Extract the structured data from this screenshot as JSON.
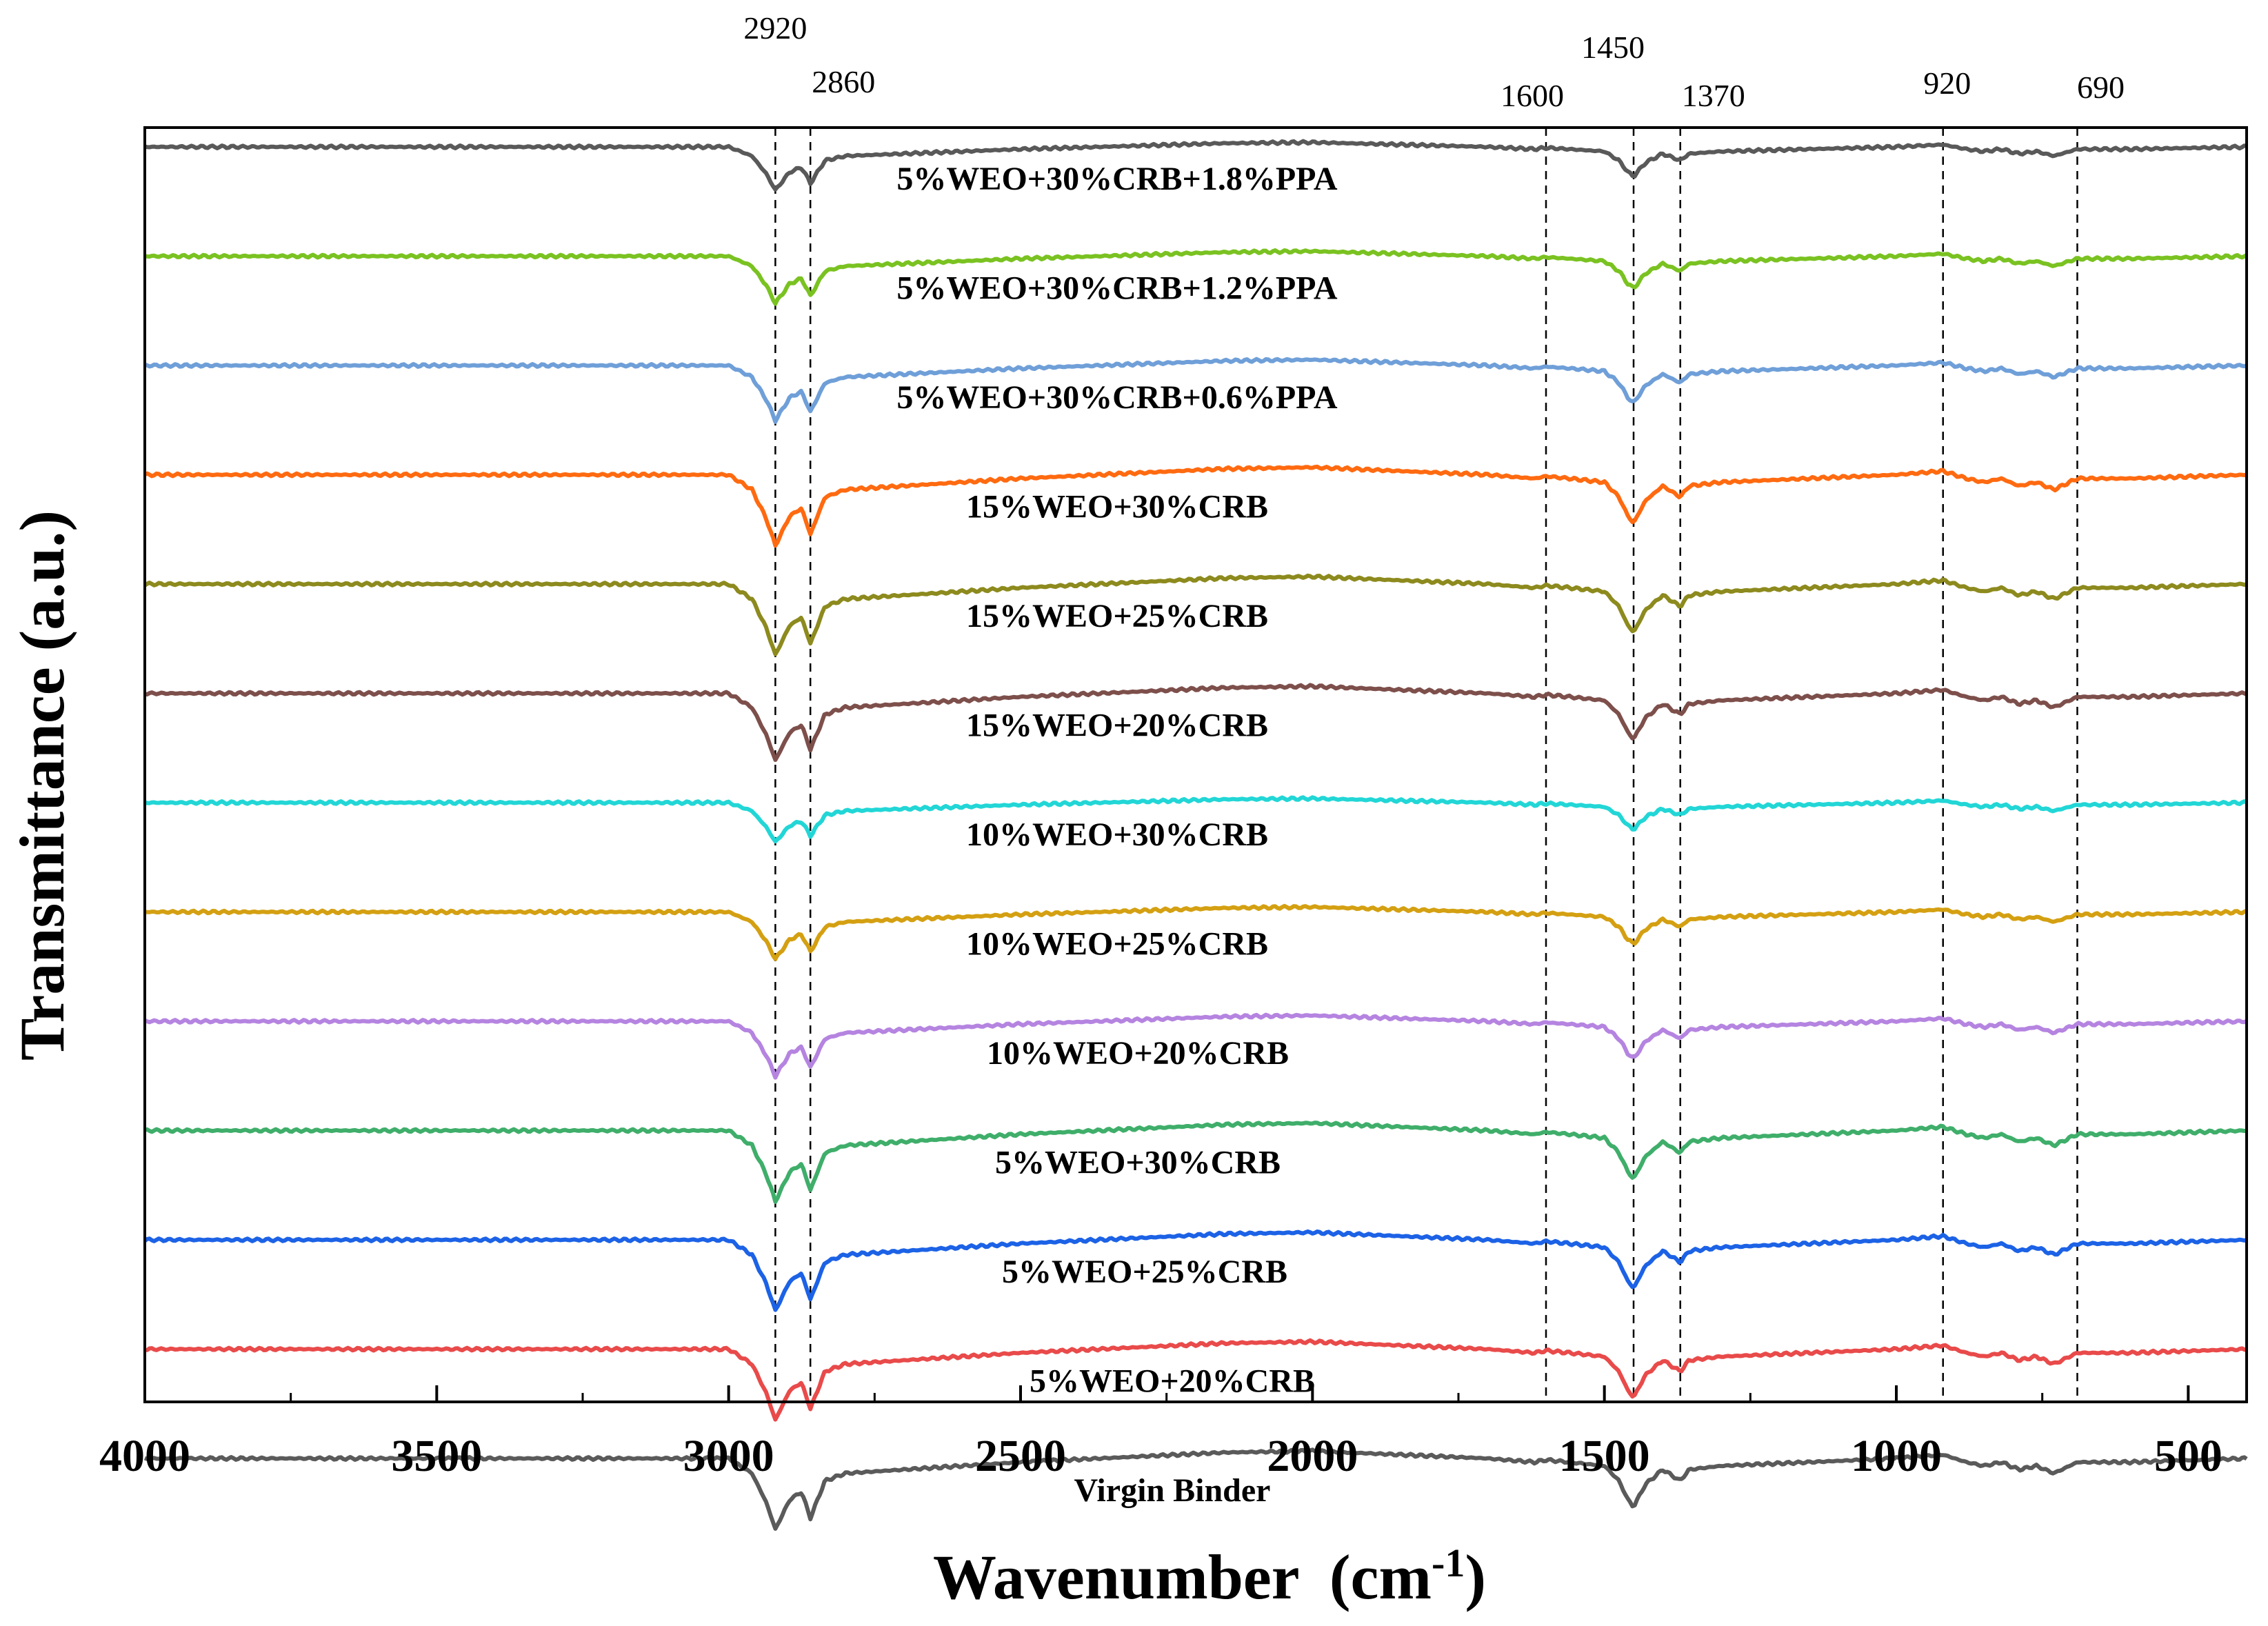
{
  "chart_data": {
    "type": "line",
    "title": "",
    "xlabel": "Wavenumber",
    "xlabel_unit": "(cm",
    "xlabel_unit_sup": "-1",
    "xlabel_unit_close": ")",
    "ylabel": "Transmittance (a.u.)",
    "xlim": [
      4000,
      400
    ],
    "x_reversed": true,
    "x_ticks": [
      {
        "value": 4000,
        "label": "4000"
      },
      {
        "value": 3500,
        "label": "3500"
      },
      {
        "value": 3000,
        "label": "3000"
      },
      {
        "value": 2500,
        "label": "2500"
      },
      {
        "value": 2000,
        "label": "2000"
      },
      {
        "value": 1500,
        "label": "1500"
      },
      {
        "value": 1000,
        "label": "1000"
      },
      {
        "value": 500,
        "label": "500"
      }
    ],
    "peak_lines": [
      {
        "value": 2920,
        "label": "2920"
      },
      {
        "value": 2860,
        "label": "2860"
      },
      {
        "value": 1600,
        "label": "1600"
      },
      {
        "value": 1450,
        "label": "1450"
      },
      {
        "value": 1370,
        "label": "1370"
      },
      {
        "value": 920,
        "label": "920"
      },
      {
        "value": 690,
        "label": "690"
      }
    ],
    "y_units": "stacked offset transmittance (a.u.), baseline level per series",
    "spectrum_shape": {
      "comment": "shared normalized spectral profile; each series baseline + scale * shape",
      "x": [
        4000,
        3000,
        2960,
        2935,
        2920,
        2895,
        2875,
        2860,
        2835,
        2800,
        2500,
        2150,
        2000,
        1700,
        1620,
        1600,
        1560,
        1500,
        1475,
        1460,
        1450,
        1430,
        1400,
        1380,
        1370,
        1355,
        1300,
        1000,
        920,
        880,
        850,
        820,
        790,
        760,
        730,
        690,
        600,
        400
      ],
      "y": [
        0,
        0,
        0.2,
        0.6,
        0.95,
        0.55,
        0.45,
        0.8,
        0.3,
        0.2,
        0.05,
        -0.08,
        -0.1,
        0,
        0.05,
        0.02,
        0.05,
        0.1,
        0.3,
        0.55,
        0.65,
        0.35,
        0.15,
        0.25,
        0.3,
        0.15,
        0.1,
        0,
        -0.05,
        0.05,
        0.1,
        0.05,
        0.15,
        0.1,
        0.2,
        0.05,
        0.05,
        0
      ]
    },
    "series": [
      {
        "name": "5%WEO+30%CRB+1.8%PPA",
        "color": "#595959",
        "baseline": 12,
        "scale": 0.55
      },
      {
        "name": "5%WEO+30%CRB+1.2%PPA",
        "color": "#7ac221",
        "baseline": 11,
        "scale": 0.6
      },
      {
        "name": "5%WEO+30%CRB+0.6%PPA",
        "color": "#6f9fd8",
        "baseline": 10,
        "scale": 0.7
      },
      {
        "name": "15%WEO+30%CRB",
        "color": "#ff6a10",
        "baseline": 9,
        "scale": 0.9
      },
      {
        "name": "15%WEO+25%CRB",
        "color": "#8d8a1e",
        "baseline": 8,
        "scale": 0.9
      },
      {
        "name": "15%WEO+20%CRB",
        "color": "#7d4f4b",
        "baseline": 7,
        "scale": 0.85
      },
      {
        "name": "10%WEO+30%CRB",
        "color": "#22d6d6",
        "baseline": 6,
        "scale": 0.5
      },
      {
        "name": "10%WEO+25%CRB",
        "color": "#d4a012",
        "baseline": 5,
        "scale": 0.6
      },
      {
        "name": "10%WEO+20%CRB",
        "color": "#b584e0",
        "baseline": 4,
        "scale": 0.7
      },
      {
        "name": "5%WEO+30%CRB",
        "color": "#3fae6a",
        "baseline": 3,
        "scale": 0.9
      },
      {
        "name": "5%WEO+25%CRB",
        "color": "#1c62e6",
        "baseline": 2,
        "scale": 0.9
      },
      {
        "name": "5%WEO+20%CRB",
        "color": "#e94a4a",
        "baseline": 1,
        "scale": 0.9
      },
      {
        "name": "Virgin Binder",
        "color": "#5a5a5a",
        "baseline": 0,
        "scale": 0.9
      }
    ],
    "legend": "inline labels beside each curve",
    "grid": false
  }
}
